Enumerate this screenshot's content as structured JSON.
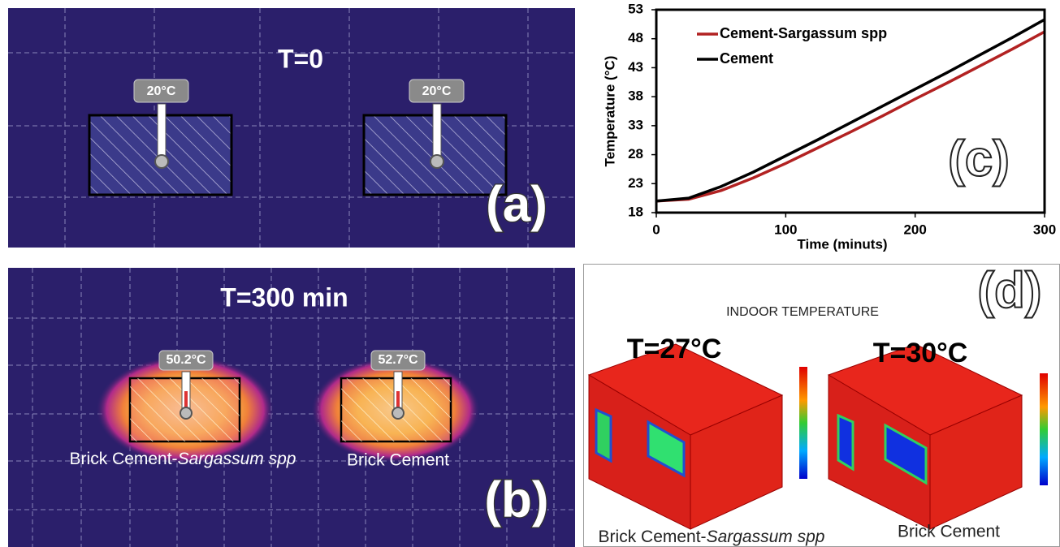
{
  "chart_data": {
    "type": "line",
    "panel_label": "(c)",
    "x_label": "Time (minuts)",
    "y_label": "Temperature (°C)",
    "x": [
      0,
      25,
      50,
      75,
      100,
      125,
      150,
      175,
      200,
      225,
      250,
      275,
      300
    ],
    "series": [
      {
        "name": "Cement-Sargassum spp",
        "color": "#b22222",
        "values": [
          20,
          20.3,
          21.8,
          24,
          26.5,
          29.2,
          31.9,
          34.7,
          37.6,
          40.4,
          43.3,
          46.2,
          49.2
        ]
      },
      {
        "name": "Cement",
        "color": "#000000",
        "values": [
          20,
          20.5,
          22.5,
          25,
          27.8,
          30.6,
          33.5,
          36.4,
          39.3,
          42.2,
          45.2,
          48.2,
          51.3
        ]
      }
    ],
    "xlim": [
      0,
      300
    ],
    "xticks": [
      0,
      100,
      200,
      300
    ],
    "ylim": [
      18,
      53
    ],
    "yticks": [
      18,
      23,
      28,
      33,
      38,
      43,
      48,
      53
    ],
    "grid": false,
    "legend": "upper left"
  },
  "panel_a": {
    "title": "T=0",
    "sensors": [
      "20°C",
      "20°C"
    ],
    "label": "(a)"
  },
  "panel_b": {
    "title": "T=300 min",
    "sensors": [
      "50.2°C",
      "52.7°C"
    ],
    "captions": [
      {
        "text": "Brick Cement-",
        "italic": "Sargassum spp"
      },
      "Brick Cement"
    ],
    "label": "(b)"
  },
  "panel_d": {
    "title": "INDOOR TEMPERATURE",
    "temperatures": [
      "T=27°C",
      "T=30°C"
    ],
    "captions": [
      {
        "text": "Brick Cement-",
        "italic": "Sargassum spp"
      },
      "Brick Cement"
    ],
    "label": "(d)"
  }
}
